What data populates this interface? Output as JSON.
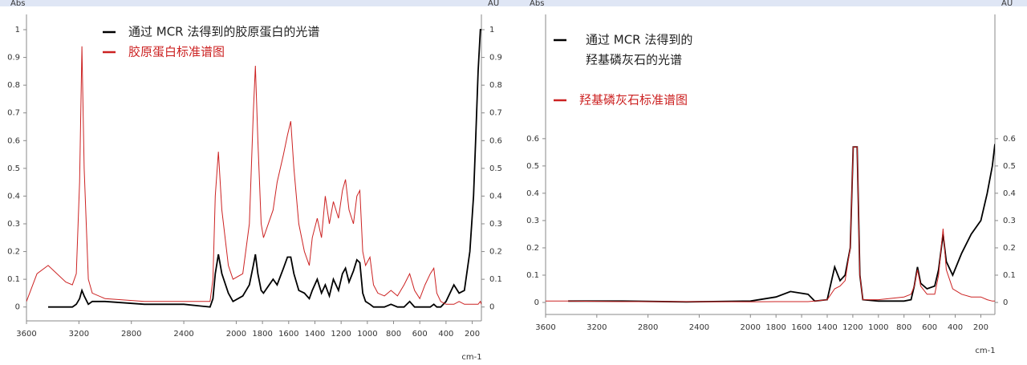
{
  "chart_data": [
    {
      "type": "line",
      "xlabel": "cm-1",
      "ylabel": "Abs",
      "y2label": "AU",
      "xlim": [
        3600,
        130
      ],
      "xticks": [
        3600,
        3200,
        2800,
        2400,
        2000,
        1800,
        1600,
        1400,
        1200,
        1000,
        800,
        600,
        400,
        200
      ],
      "ylim": [
        -0.05,
        1.055
      ],
      "yticks": [
        0,
        0.1,
        0.2,
        0.3,
        0.4,
        0.5,
        0.6,
        0.7,
        0.8,
        0.9,
        1
      ],
      "y2lim": [
        -0.05,
        1.055
      ],
      "y2ticks": [
        0,
        0.1,
        0.2,
        0.3,
        0.4,
        0.5,
        0.6,
        0.7,
        0.8,
        0.9,
        1
      ],
      "x": [
        3600,
        3520,
        3435,
        3300,
        3250,
        3220,
        3195,
        3177,
        3160,
        3128,
        3098,
        3000,
        2700,
        2400,
        2200,
        2178,
        2160,
        2136,
        2110,
        2060,
        2025,
        1950,
        1900,
        1870,
        1854,
        1835,
        1810,
        1792,
        1719,
        1688,
        1640,
        1609,
        1584,
        1560,
        1523,
        1480,
        1443,
        1420,
        1382,
        1350,
        1321,
        1290,
        1259,
        1220,
        1190,
        1167,
        1140,
        1106,
        1080,
        1057,
        1035,
        1014,
        980,
        953,
        920,
        870,
        820,
        770,
        720,
        677,
        640,
        600,
        560,
        520,
        493,
        470,
        440,
        400,
        340,
        300,
        260,
        218,
        190,
        174,
        155,
        138,
        130
      ],
      "series": [
        {
          "name": "通过 MCR 法得到的胶原蛋白的光谱",
          "color": "#000000",
          "values": [
            null,
            null,
            0,
            0,
            0,
            0.01,
            0.03,
            0.06,
            0.04,
            0.01,
            0.02,
            0.02,
            0.01,
            0.01,
            0,
            0.03,
            0.12,
            0.19,
            0.12,
            0.05,
            0.02,
            0.04,
            0.08,
            0.15,
            0.19,
            0.12,
            0.06,
            0.05,
            0.1,
            0.08,
            0.14,
            0.18,
            0.18,
            0.12,
            0.06,
            0.05,
            0.03,
            0.06,
            0.1,
            0.05,
            0.08,
            0.04,
            0.1,
            0.06,
            0.12,
            0.14,
            0.09,
            0.13,
            0.17,
            0.16,
            0.05,
            0.02,
            0.01,
            0,
            0,
            0,
            0.01,
            0,
            0,
            0.02,
            0,
            0,
            0,
            0,
            0.01,
            0,
            0,
            0.02,
            0.08,
            0.05,
            0.06,
            0.2,
            0.4,
            0.6,
            0.85,
            1,
            1
          ]
        },
        {
          "name": "胶原蛋白标准谱图",
          "color": "#cc2222",
          "values": [
            0.02,
            0.12,
            0.15,
            0.09,
            0.08,
            0.12,
            0.45,
            0.94,
            0.5,
            0.1,
            0.05,
            0.03,
            0.02,
            0.02,
            0.02,
            0.1,
            0.4,
            0.56,
            0.35,
            0.15,
            0.1,
            0.12,
            0.3,
            0.7,
            0.87,
            0.6,
            0.3,
            0.25,
            0.35,
            0.45,
            0.55,
            0.62,
            0.67,
            0.5,
            0.3,
            0.2,
            0.15,
            0.25,
            0.32,
            0.25,
            0.4,
            0.3,
            0.38,
            0.32,
            0.42,
            0.46,
            0.35,
            0.3,
            0.4,
            0.42,
            0.2,
            0.15,
            0.18,
            0.08,
            0.05,
            0.04,
            0.06,
            0.04,
            0.08,
            0.12,
            0.06,
            0.03,
            0.08,
            0.12,
            0.14,
            0.05,
            0.02,
            0.01,
            0.01,
            0.02,
            0.01,
            0.01,
            0.01,
            0.01,
            0.01,
            0.02,
            0.01
          ]
        }
      ]
    },
    {
      "type": "line",
      "xlabel": "cm-1",
      "ylabel": "Abs",
      "y2label": "AU",
      "xlim": [
        3600,
        90
      ],
      "xticks": [
        3600,
        3200,
        2800,
        2400,
        2000,
        1800,
        1600,
        1400,
        1200,
        1000,
        800,
        600,
        400,
        200
      ],
      "ylim": [
        -0.044,
        1.055
      ],
      "yticks": [
        0,
        0.1,
        0.2,
        0.3,
        0.4,
        0.5,
        0.6
      ],
      "y2lim": [
        -0.044,
        1.055
      ],
      "y2ticks": [
        0,
        0.1,
        0.2,
        0.3,
        0.4,
        0.5,
        0.6
      ],
      "x": [
        3600,
        3424,
        3000,
        2500,
        2000,
        1800,
        1687,
        1550,
        1498,
        1400,
        1342,
        1300,
        1260,
        1220,
        1197,
        1166,
        1145,
        1122,
        1000,
        800,
        745,
        720,
        695,
        670,
        620,
        560,
        530,
        495,
        470,
        420,
        350,
        275,
        200,
        150,
        110,
        90
      ],
      "series": [
        {
          "name": [
            "通过 MCR 法得到的",
            "羟基磷灰石的光谱"
          ],
          "color": "#000000",
          "values": [
            null,
            0.005,
            0.005,
            0.002,
            0.005,
            0.02,
            0.04,
            0.03,
            0.005,
            0.01,
            0.13,
            0.08,
            0.1,
            0.2,
            0.57,
            0.57,
            0.1,
            0.01,
            0.005,
            0.005,
            0.01,
            0.06,
            0.13,
            0.07,
            0.05,
            0.06,
            0.12,
            0.25,
            0.15,
            0.1,
            0.18,
            0.25,
            0.3,
            0.4,
            0.5,
            0.58
          ]
        },
        {
          "name": "羟基磷灰石标准谱图",
          "color": "#cc2222",
          "values": [
            0.005,
            0.005,
            0.003,
            0.003,
            0.002,
            0.003,
            0.003,
            0.003,
            0.005,
            0.01,
            0.05,
            0.06,
            0.08,
            0.2,
            0.57,
            0.57,
            0.1,
            0.01,
            0.01,
            0.02,
            0.03,
            0.06,
            0.12,
            0.06,
            0.03,
            0.03,
            0.1,
            0.27,
            0.12,
            0.05,
            0.03,
            0.02,
            0.02,
            0.01,
            0.005,
            0.005
          ]
        }
      ]
    }
  ]
}
